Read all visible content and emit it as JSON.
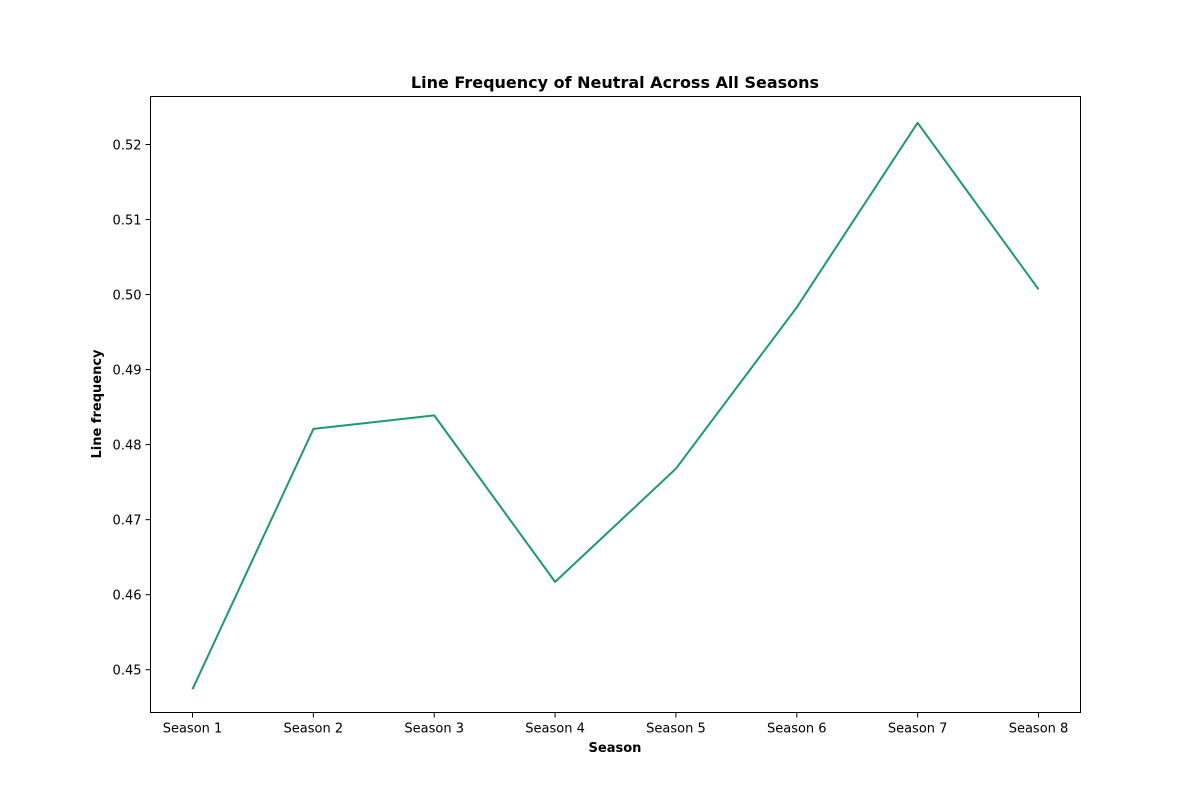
{
  "chart_data": {
    "type": "line",
    "title": "Line Frequency of Neutral Across All Seasons",
    "xlabel": "Season",
    "ylabel": "Line frequency",
    "categories": [
      "Season 1",
      "Season 2",
      "Season 3",
      "Season 4",
      "Season 5",
      "Season 6",
      "Season 7",
      "Season 8"
    ],
    "series": [
      {
        "values": [
          0.4474,
          0.4821,
          0.4839,
          0.4617,
          0.4768,
          0.4983,
          0.5229,
          0.5007
        ]
      }
    ],
    "ylim": [
      0.4443,
      0.5264
    ],
    "yticks": [
      0.45,
      0.46,
      0.47,
      0.48,
      0.49,
      0.5,
      0.51,
      0.52
    ],
    "ytick_labels": [
      "0.45",
      "0.46",
      "0.47",
      "0.48",
      "0.49",
      "0.50",
      "0.51",
      "0.52"
    ],
    "grid": false,
    "legend": "none",
    "colors": {
      "line": "#1a9a72",
      "axes": "#000000"
    }
  }
}
